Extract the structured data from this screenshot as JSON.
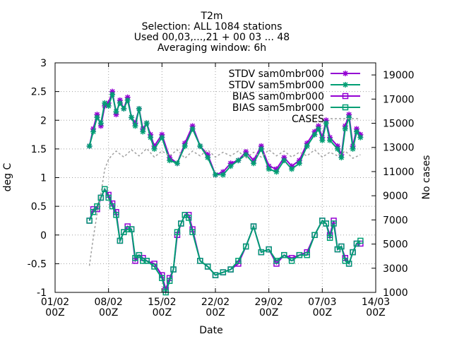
{
  "chart_data": {
    "type": "line",
    "title": "T2m",
    "subtitle_lines": [
      "Selection: ALL   1084 stations",
      "Used 00,03,...,21 + 00 03 ... 48",
      "Averaging window:  6h"
    ],
    "xlabel": "Date",
    "ylabel": "deg C",
    "y2label": "No cases",
    "xlim": [
      0,
      41
    ],
    "ylim": [
      -1,
      3
    ],
    "y2lim": [
      1000,
      20000
    ],
    "x_ticks": [
      {
        "x": 0,
        "label": "01/02",
        "sub": "00Z"
      },
      {
        "x": 7,
        "label": "08/02",
        "sub": "00Z"
      },
      {
        "x": 14,
        "label": "15/02",
        "sub": "00Z"
      },
      {
        "x": 21,
        "label": "22/02",
        "sub": "00Z"
      },
      {
        "x": 28,
        "label": "29/02",
        "sub": "00Z"
      },
      {
        "x": 35,
        "label": "07/03",
        "sub": "00Z"
      },
      {
        "x": 42,
        "label": "14/03",
        "sub": "00Z"
      }
    ],
    "y_ticks": [
      "-1",
      "-0.5",
      "0",
      "0.5",
      "1",
      "1.5",
      "2",
      "2.5",
      "3"
    ],
    "y2_ticks": [
      "1000",
      "3000",
      "5000",
      "7000",
      "9000",
      "11000",
      "13000",
      "15000",
      "17000",
      "19000"
    ],
    "grid": true,
    "legend_position": "top-right",
    "colors": {
      "stdv_sam0": "#9400d3",
      "stdv_sam5": "#009e73",
      "bias_sam0": "#9400d3",
      "bias_sam5": "#009e73",
      "cases": "#a0a0a0"
    },
    "series": [
      {
        "name": "STDV sam0mbr000",
        "key": "stdv_sam0",
        "axis": "y1",
        "marker": "star",
        "x": [
          4.5,
          5.0,
          5.5,
          6.0,
          6.5,
          7.0,
          7.5,
          8.0,
          8.5,
          9.0,
          9.5,
          10.0,
          10.5,
          11.0,
          11.5,
          12.0,
          12.5,
          13.0,
          14.0,
          15.0,
          16.0,
          17.0,
          18.0,
          19.0,
          20.0,
          21.0,
          22.0,
          23.0,
          24.0,
          25.0,
          26.0,
          27.0,
          28.0,
          29.0,
          30.0,
          31.0,
          32.0,
          33.0,
          34.0,
          34.5,
          35.0,
          35.5,
          36.0,
          37.0,
          37.5,
          38.0,
          38.5,
          39.0,
          39.5,
          40.0
        ],
        "y": [
          1.55,
          1.85,
          2.1,
          1.9,
          2.25,
          2.3,
          2.5,
          2.1,
          2.35,
          2.2,
          2.4,
          2.05,
          1.95,
          2.2,
          1.85,
          1.95,
          1.75,
          1.55,
          1.75,
          1.35,
          1.25,
          1.6,
          1.9,
          1.55,
          1.4,
          1.05,
          1.1,
          1.25,
          1.3,
          1.45,
          1.3,
          1.55,
          1.2,
          1.15,
          1.35,
          1.2,
          1.3,
          1.6,
          1.8,
          1.9,
          1.7,
          2.0,
          1.7,
          1.55,
          1.4,
          1.9,
          2.1,
          1.55,
          1.85,
          1.75
        ]
      },
      {
        "name": "STDV sam5mbr000",
        "key": "stdv_sam5",
        "axis": "y1",
        "marker": "star",
        "x": [
          4.5,
          5.0,
          5.5,
          6.0,
          6.5,
          7.0,
          7.5,
          8.0,
          8.5,
          9.0,
          9.5,
          10.0,
          10.5,
          11.0,
          11.5,
          12.0,
          12.5,
          13.0,
          14.0,
          15.0,
          16.0,
          17.0,
          18.0,
          19.0,
          20.0,
          21.0,
          22.0,
          23.0,
          24.0,
          25.0,
          26.0,
          27.0,
          28.0,
          29.0,
          30.0,
          31.0,
          32.0,
          33.0,
          34.0,
          34.5,
          35.0,
          35.5,
          36.0,
          37.0,
          37.5,
          38.0,
          38.5,
          39.0,
          39.5,
          40.0
        ],
        "y": [
          1.55,
          1.8,
          2.05,
          1.95,
          2.3,
          2.25,
          2.45,
          2.15,
          2.3,
          2.2,
          2.35,
          2.05,
          1.9,
          2.2,
          1.8,
          1.95,
          1.7,
          1.5,
          1.7,
          1.3,
          1.25,
          1.55,
          1.85,
          1.55,
          1.35,
          1.05,
          1.05,
          1.2,
          1.3,
          1.4,
          1.25,
          1.5,
          1.15,
          1.1,
          1.3,
          1.15,
          1.25,
          1.55,
          1.75,
          1.85,
          1.65,
          1.95,
          1.65,
          1.5,
          1.35,
          1.85,
          2.05,
          1.5,
          1.8,
          1.7
        ]
      },
      {
        "name": "BIAS sam0mbr000",
        "key": "bias_sam0",
        "axis": "y1",
        "marker": "square",
        "x": [
          4.5,
          5.0,
          5.5,
          6.0,
          6.5,
          7.0,
          7.5,
          8.0,
          8.5,
          9.0,
          9.5,
          10.0,
          10.5,
          11.0,
          11.5,
          12.0,
          13.0,
          14.0,
          14.5,
          15.0,
          15.5,
          16.0,
          16.5,
          17.0,
          17.5,
          18.0,
          19.0,
          20.0,
          21.0,
          22.0,
          23.0,
          24.0,
          25.0,
          26.0,
          27.0,
          28.0,
          29.0,
          30.0,
          31.0,
          32.0,
          33.0,
          34.0,
          35.0,
          35.5,
          36.0,
          36.5,
          37.0,
          37.5,
          38.0,
          38.5,
          39.0,
          39.5,
          40.0
        ],
        "y": [
          0.25,
          0.45,
          0.45,
          0.65,
          0.8,
          0.7,
          0.55,
          0.4,
          -0.1,
          0.05,
          0.15,
          0.1,
          -0.45,
          -0.35,
          -0.4,
          -0.45,
          -0.5,
          -0.7,
          -0.95,
          -0.75,
          -0.6,
          0.0,
          0.2,
          0.35,
          0.35,
          0.1,
          -0.45,
          -0.55,
          -0.7,
          -0.65,
          -0.6,
          -0.5,
          -0.2,
          0.15,
          -0.3,
          -0.25,
          -0.5,
          -0.35,
          -0.4,
          -0.35,
          -0.3,
          0.0,
          0.25,
          0.2,
          0.0,
          0.25,
          -0.25,
          -0.2,
          -0.4,
          -0.5,
          -0.3,
          -0.15,
          -0.15
        ]
      },
      {
        "name": "BIAS sam5mbr000",
        "key": "bias_sam5",
        "axis": "y1",
        "marker": "square",
        "x": [
          4.5,
          5.0,
          5.5,
          6.0,
          6.5,
          7.0,
          7.5,
          8.0,
          8.5,
          9.0,
          9.5,
          10.0,
          10.5,
          11.0,
          11.5,
          12.0,
          13.0,
          14.0,
          14.5,
          15.0,
          15.5,
          16.0,
          16.5,
          17.0,
          17.5,
          18.0,
          19.0,
          20.0,
          21.0,
          22.0,
          23.0,
          24.0,
          25.0,
          26.0,
          27.0,
          28.0,
          29.0,
          30.0,
          31.0,
          32.0,
          33.0,
          34.0,
          35.0,
          35.5,
          36.0,
          36.5,
          37.0,
          37.5,
          38.0,
          38.5,
          39.0,
          39.5,
          40.0
        ],
        "y": [
          0.25,
          0.4,
          0.5,
          0.65,
          0.8,
          0.65,
          0.5,
          0.35,
          -0.1,
          0.05,
          0.1,
          0.1,
          -0.4,
          -0.35,
          -0.45,
          -0.45,
          -0.55,
          -0.75,
          -1.0,
          -0.8,
          -0.6,
          0.05,
          0.2,
          0.35,
          0.3,
          0.05,
          -0.45,
          -0.55,
          -0.7,
          -0.65,
          -0.6,
          -0.45,
          -0.2,
          0.15,
          -0.3,
          -0.25,
          -0.45,
          -0.35,
          -0.45,
          -0.35,
          -0.35,
          0.0,
          0.25,
          0.2,
          -0.05,
          0.2,
          -0.25,
          -0.2,
          -0.45,
          -0.5,
          -0.3,
          -0.15,
          -0.1
        ]
      },
      {
        "name": "CASES",
        "key": "cases",
        "axis": "y2",
        "marker": "none",
        "dashed": true,
        "x": [
          4.5,
          5.0,
          5.5,
          6.0,
          6.5,
          7.0,
          7.5,
          8.0,
          9.0,
          10.0,
          11.0,
          12.0,
          13.0,
          14.0,
          15.0,
          16.0,
          17.0,
          18.0,
          19.0,
          20.0,
          21.0,
          22.0,
          23.0,
          24.0,
          25.0,
          26.0,
          27.0,
          28.0,
          29.0,
          30.0,
          31.0,
          32.0,
          33.0,
          34.0,
          35.0,
          36.0,
          37.0,
          38.0,
          39.0,
          40.0
        ],
        "y": [
          3200,
          5500,
          7500,
          9200,
          11200,
          12000,
          12400,
          12700,
          12200,
          12800,
          12300,
          12900,
          12200,
          12700,
          12300,
          12800,
          12100,
          12700,
          12300,
          12800,
          12200,
          12600,
          12300,
          12700,
          12100,
          12600,
          12200,
          12800,
          12300,
          12700,
          12200,
          12600,
          12300,
          12800,
          12200,
          12600,
          12300,
          12700,
          12100,
          12400
        ]
      }
    ]
  }
}
